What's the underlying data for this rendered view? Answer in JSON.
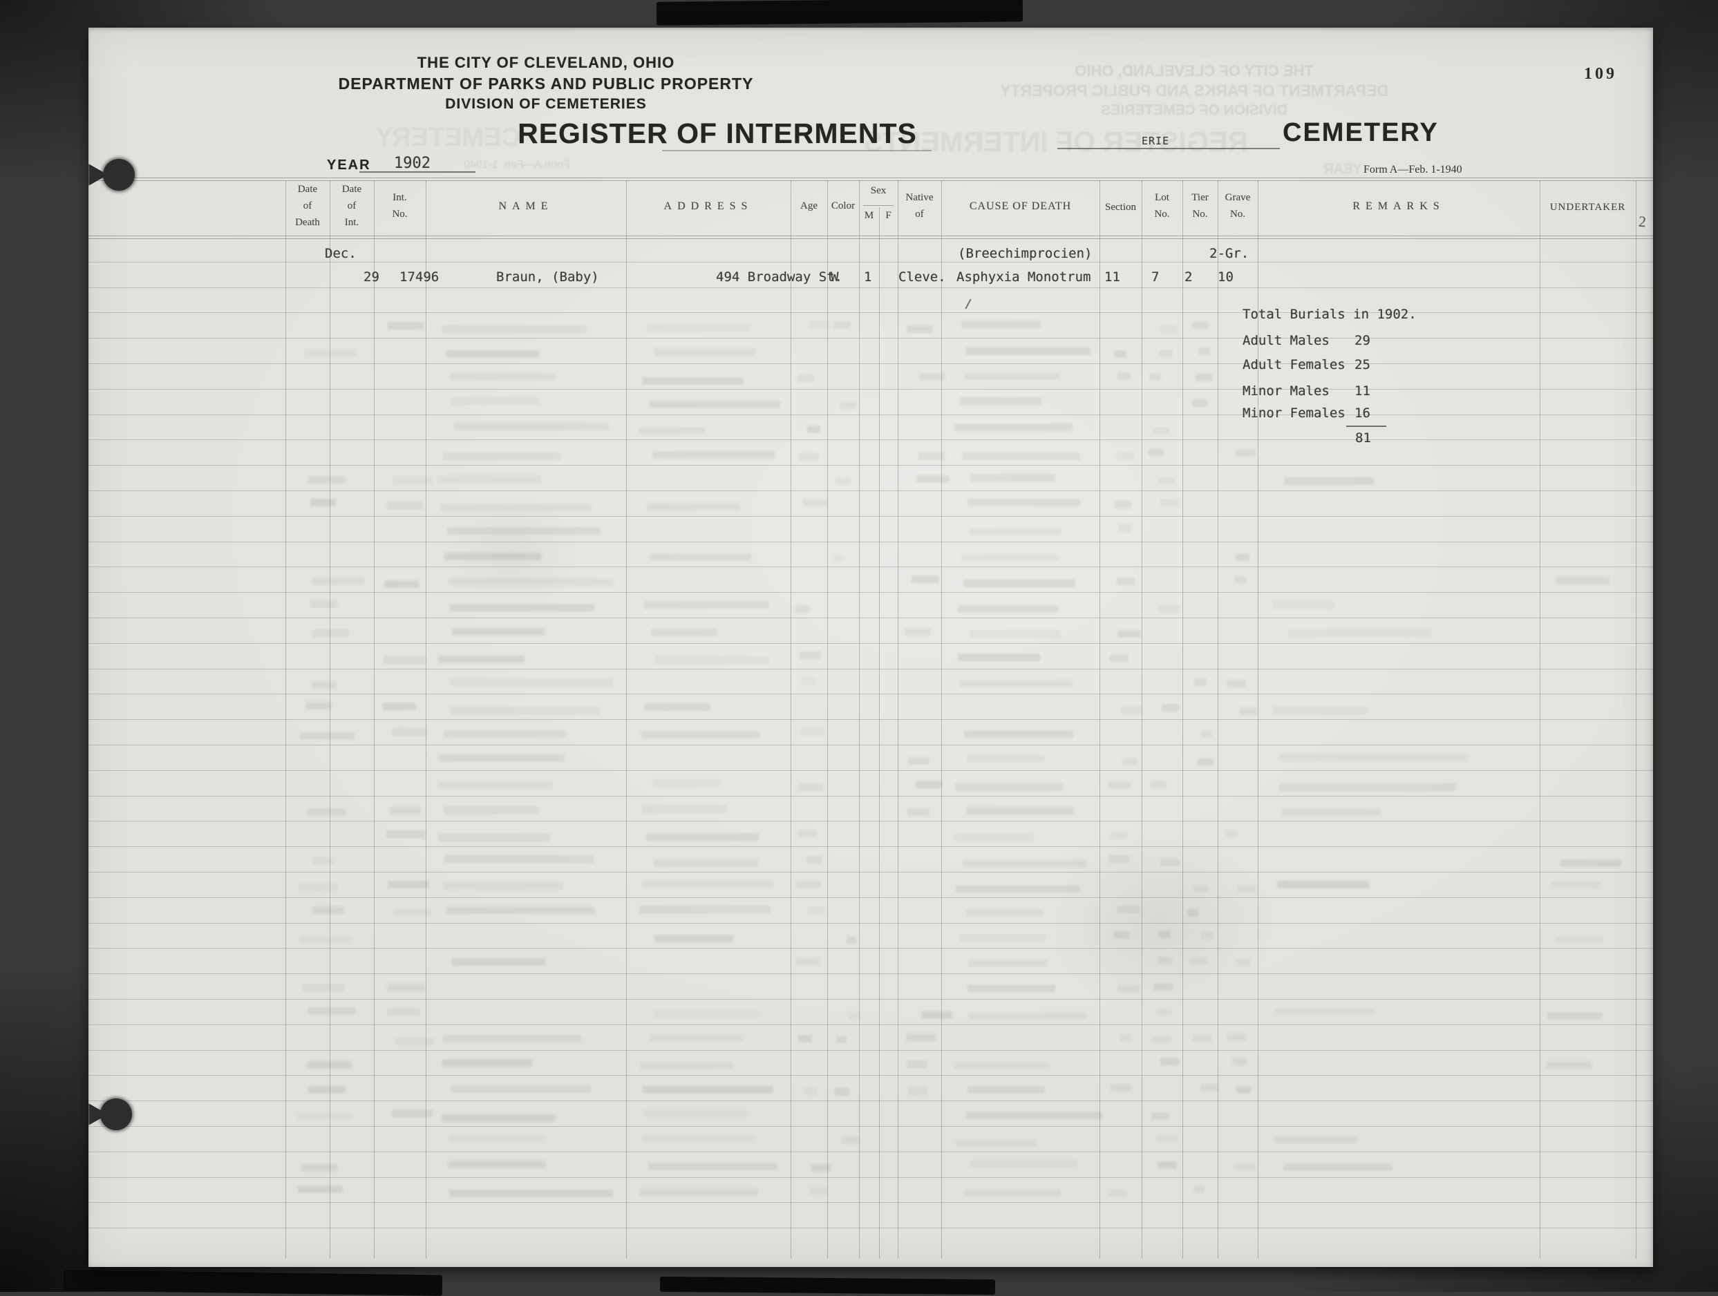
{
  "page_number": "109",
  "margin_note": "2",
  "header": {
    "org_line1": "THE CITY OF CLEVELAND, OHIO",
    "org_line2": "DEPARTMENT OF PARKS AND PUBLIC PROPERTY",
    "org_line3": "DIVISION OF CEMETERIES",
    "title": "REGISTER OF INTERMENTS",
    "year_label": "YEAR",
    "year_value": "1902",
    "cemetery_name": "ERIE",
    "cemetery_word": "CEMETERY",
    "form_note": "Form A—Feb. 1-1940"
  },
  "table": {
    "columns": {
      "date_of_death": [
        "Date",
        "of",
        "Death"
      ],
      "date_of_int": [
        "Date",
        "of",
        "Int."
      ],
      "int_no": [
        "Int.",
        "No."
      ],
      "name": "NAME",
      "address": "ADDRESS",
      "age": "Age",
      "color": "Color",
      "sex": "Sex",
      "sex_m": "M",
      "sex_f": "F",
      "native_of": [
        "Native",
        "of"
      ],
      "cause_of_death": "CAUSE OF DEATH",
      "section": "Section",
      "lot_no": [
        "Lot",
        "No."
      ],
      "tier_no": [
        "Tier",
        "No."
      ],
      "grave_no": [
        "Grave",
        "No."
      ],
      "remarks": "REMARKS",
      "undertaker": "UNDERTAKER"
    },
    "row": {
      "date_of_int_month": "Dec.",
      "date_of_int_day": "29",
      "int_no": "17496",
      "name": "Braun, (Baby)",
      "address": "494 Broadway St.",
      "color": "W",
      "sex_m": "1",
      "native_of": "Cleve.",
      "cause_line1": "(Breechimprocien)",
      "cause_line2": "Asphyxia Monotrum",
      "section": "11",
      "lot_no": "7",
      "tier_no": "2",
      "grave_prefix": "2-Gr.",
      "grave_no": "10"
    }
  },
  "summary": {
    "title": "Total Burials in 1902.",
    "rows": [
      {
        "label": "Adult Males",
        "value": "29"
      },
      {
        "label": "Adult Females",
        "value": "25"
      },
      {
        "label": "Minor Males",
        "value": "11"
      },
      {
        "label": "Minor Females",
        "value": "16"
      }
    ],
    "total": "81"
  }
}
